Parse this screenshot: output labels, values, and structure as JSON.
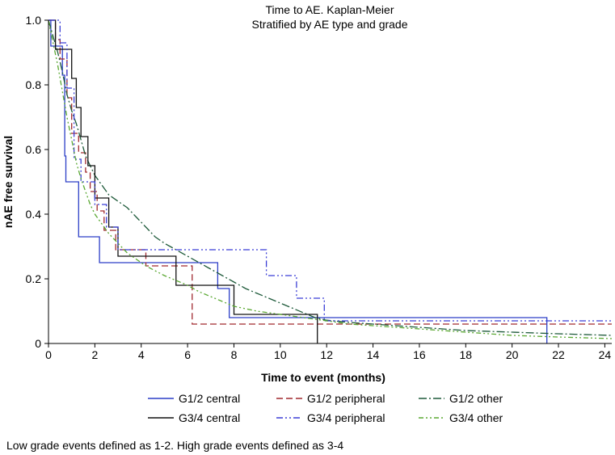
{
  "chart_data": {
    "type": "line",
    "title": "Time to AE. Kaplan-Meier",
    "subtitle": "Stratified by AE type and grade",
    "xlabel": "Time to event (months)",
    "ylabel": "nAE free survival",
    "xlim": [
      0,
      24.3
    ],
    "ylim": [
      0,
      1.0
    ],
    "xticks": [
      0,
      2,
      4,
      6,
      8,
      10,
      12,
      14,
      16,
      18,
      20,
      22,
      24
    ],
    "yticks": [
      0,
      0.2,
      0.4,
      0.6,
      0.8,
      1.0
    ],
    "ytick_labels": [
      "0",
      "0.2",
      "0.4",
      "0.6",
      "0.8",
      "1.0"
    ],
    "grid": false,
    "legend_position": "bottom",
    "footnote": "Low grade events defined as 1-2. High grade events defined as 3-4",
    "series": [
      {
        "name": "G1/2 central",
        "color": "#2c3fc7",
        "dash": "solid",
        "points": [
          [
            0,
            1.0
          ],
          [
            0.1,
            1.0
          ],
          [
            0.1,
            0.92
          ],
          [
            0.6,
            0.92
          ],
          [
            0.6,
            0.83
          ],
          [
            0.7,
            0.83
          ],
          [
            0.7,
            0.58
          ],
          [
            0.75,
            0.58
          ],
          [
            0.75,
            0.5
          ],
          [
            1.3,
            0.5
          ],
          [
            1.3,
            0.33
          ],
          [
            2.2,
            0.33
          ],
          [
            2.2,
            0.25
          ],
          [
            7.3,
            0.25
          ],
          [
            7.3,
            0.17
          ],
          [
            7.8,
            0.17
          ],
          [
            7.8,
            0.08
          ],
          [
            21.5,
            0.08
          ],
          [
            21.5,
            0.0
          ]
        ]
      },
      {
        "name": "G1/2 peripheral",
        "color": "#a0292f",
        "dash": "8,4",
        "points": [
          [
            0,
            1.0
          ],
          [
            0.3,
            1.0
          ],
          [
            0.3,
            0.94
          ],
          [
            0.5,
            0.94
          ],
          [
            0.5,
            0.88
          ],
          [
            0.8,
            0.88
          ],
          [
            0.8,
            0.76
          ],
          [
            1.0,
            0.76
          ],
          [
            1.0,
            0.65
          ],
          [
            1.3,
            0.65
          ],
          [
            1.3,
            0.59
          ],
          [
            1.6,
            0.59
          ],
          [
            1.6,
            0.53
          ],
          [
            1.8,
            0.53
          ],
          [
            1.8,
            0.47
          ],
          [
            2.1,
            0.47
          ],
          [
            2.1,
            0.41
          ],
          [
            2.4,
            0.41
          ],
          [
            2.4,
            0.35
          ],
          [
            2.9,
            0.35
          ],
          [
            2.9,
            0.29
          ],
          [
            4.2,
            0.29
          ],
          [
            4.2,
            0.24
          ],
          [
            6.2,
            0.24
          ],
          [
            6.2,
            0.06
          ],
          [
            24.3,
            0.06
          ]
        ]
      },
      {
        "name": "G1/2 other",
        "color": "#1e5a3a",
        "dash": "10,3,2,3",
        "points": [
          [
            0,
            1.0
          ],
          [
            0.2,
            0.95
          ],
          [
            0.4,
            0.9
          ],
          [
            0.6,
            0.84
          ],
          [
            0.8,
            0.77
          ],
          [
            1.0,
            0.72
          ],
          [
            1.2,
            0.68
          ],
          [
            1.4,
            0.63
          ],
          [
            1.6,
            0.58
          ],
          [
            1.8,
            0.55
          ],
          [
            2.0,
            0.52
          ],
          [
            2.3,
            0.49
          ],
          [
            2.6,
            0.46
          ],
          [
            3.0,
            0.44
          ],
          [
            3.4,
            0.42
          ],
          [
            3.8,
            0.39
          ],
          [
            4.2,
            0.36
          ],
          [
            4.6,
            0.33
          ],
          [
            5.0,
            0.31
          ],
          [
            5.5,
            0.29
          ],
          [
            6.0,
            0.27
          ],
          [
            6.5,
            0.25
          ],
          [
            7.0,
            0.23
          ],
          [
            7.5,
            0.21
          ],
          [
            8.0,
            0.19
          ],
          [
            8.5,
            0.17
          ],
          [
            9.0,
            0.155
          ],
          [
            9.5,
            0.14
          ],
          [
            10.0,
            0.125
          ],
          [
            10.5,
            0.11
          ],
          [
            11.0,
            0.095
          ],
          [
            11.5,
            0.08
          ],
          [
            12.0,
            0.072
          ],
          [
            13.0,
            0.065
          ],
          [
            14.0,
            0.06
          ],
          [
            16.0,
            0.05
          ],
          [
            18.0,
            0.04
          ],
          [
            20.0,
            0.035
          ],
          [
            22.0,
            0.03
          ],
          [
            24.3,
            0.025
          ]
        ]
      },
      {
        "name": "G3/4 central",
        "color": "#111111",
        "dash": "solid",
        "points": [
          [
            0,
            1.0
          ],
          [
            0.3,
            1.0
          ],
          [
            0.3,
            0.91
          ],
          [
            1.0,
            0.91
          ],
          [
            1.0,
            0.82
          ],
          [
            1.2,
            0.82
          ],
          [
            1.2,
            0.73
          ],
          [
            1.4,
            0.73
          ],
          [
            1.4,
            0.64
          ],
          [
            1.7,
            0.64
          ],
          [
            1.7,
            0.55
          ],
          [
            2.0,
            0.55
          ],
          [
            2.0,
            0.45
          ],
          [
            2.6,
            0.45
          ],
          [
            2.6,
            0.36
          ],
          [
            3.0,
            0.36
          ],
          [
            3.0,
            0.27
          ],
          [
            5.5,
            0.27
          ],
          [
            5.5,
            0.18
          ],
          [
            8.0,
            0.18
          ],
          [
            8.0,
            0.09
          ],
          [
            11.6,
            0.09
          ],
          [
            11.6,
            0.0
          ]
        ]
      },
      {
        "name": "G3/4 peripheral",
        "color": "#3b3fd6",
        "dash": "8,3,2,3,2,3",
        "points": [
          [
            0,
            1.0
          ],
          [
            0.5,
            1.0
          ],
          [
            0.5,
            0.93
          ],
          [
            0.8,
            0.93
          ],
          [
            0.8,
            0.79
          ],
          [
            1.1,
            0.79
          ],
          [
            1.1,
            0.57
          ],
          [
            1.4,
            0.57
          ],
          [
            1.4,
            0.5
          ],
          [
            2.0,
            0.5
          ],
          [
            2.0,
            0.43
          ],
          [
            2.5,
            0.43
          ],
          [
            2.5,
            0.36
          ],
          [
            3.0,
            0.36
          ],
          [
            3.0,
            0.29
          ],
          [
            9.4,
            0.29
          ],
          [
            9.4,
            0.21
          ],
          [
            10.7,
            0.21
          ],
          [
            10.7,
            0.14
          ],
          [
            11.9,
            0.14
          ],
          [
            11.9,
            0.07
          ],
          [
            24.3,
            0.07
          ]
        ]
      },
      {
        "name": "G3/4 other",
        "color": "#5aa832",
        "dash": "6,3,2,3,2,3",
        "points": [
          [
            0,
            1.0
          ],
          [
            0.2,
            0.93
          ],
          [
            0.4,
            0.86
          ],
          [
            0.6,
            0.78
          ],
          [
            0.8,
            0.7
          ],
          [
            1.0,
            0.63
          ],
          [
            1.2,
            0.56
          ],
          [
            1.4,
            0.51
          ],
          [
            1.6,
            0.47
          ],
          [
            1.8,
            0.43
          ],
          [
            2.0,
            0.4
          ],
          [
            2.3,
            0.37
          ],
          [
            2.6,
            0.34
          ],
          [
            3.0,
            0.31
          ],
          [
            3.4,
            0.28
          ],
          [
            3.8,
            0.26
          ],
          [
            4.2,
            0.24
          ],
          [
            4.6,
            0.225
          ],
          [
            5.0,
            0.21
          ],
          [
            5.5,
            0.195
          ],
          [
            6.0,
            0.18
          ],
          [
            6.5,
            0.16
          ],
          [
            7.0,
            0.145
          ],
          [
            7.5,
            0.13
          ],
          [
            8.0,
            0.115
          ],
          [
            9.0,
            0.1
          ],
          [
            10.0,
            0.09
          ],
          [
            11.0,
            0.08
          ],
          [
            12.0,
            0.07
          ],
          [
            13.0,
            0.06
          ],
          [
            14.0,
            0.055
          ],
          [
            16.0,
            0.045
          ],
          [
            18.0,
            0.035
          ],
          [
            20.0,
            0.025
          ],
          [
            22.0,
            0.02
          ],
          [
            24.3,
            0.015
          ]
        ]
      }
    ]
  }
}
